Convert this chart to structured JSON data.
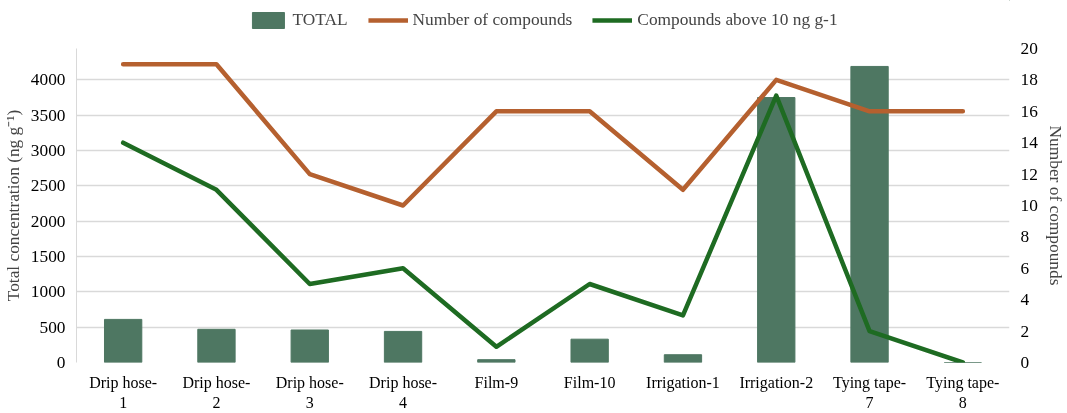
{
  "chart_data": {
    "type": "bar",
    "categories": [
      "Drip hose-1",
      "Drip hose-2",
      "Drip hose-3",
      "Drip hose-4",
      "Film-9",
      "Film-10",
      "Irrigation-1",
      "Irrigation-2",
      "Tying tape-7",
      "Tying tape-8"
    ],
    "series": [
      {
        "name": "TOTAL",
        "type": "bar",
        "color": "#4e7762",
        "values": [
          610,
          470,
          460,
          440,
          40,
          330,
          110,
          3750,
          4190,
          0
        ]
      },
      {
        "name": "Number of compounds",
        "type": "line",
        "axis": "y2",
        "color": "#b5602f",
        "values": [
          19,
          19,
          12,
          10,
          16,
          16,
          11,
          18,
          16,
          16
        ]
      },
      {
        "name": "Compounds above 10 ng g-1",
        "type": "line",
        "axis": "y2",
        "color": "#1e6b22",
        "values": [
          14,
          11,
          5,
          6,
          1,
          5,
          3,
          17,
          2,
          0
        ]
      }
    ],
    "ylabel": "Total concentration (ng g⁻¹)",
    "y2label": "Number of compounds",
    "ylim": [
      0,
      4444
    ],
    "yticks": [
      0,
      500,
      1000,
      1500,
      2000,
      2500,
      3000,
      3500,
      4000
    ],
    "y2lim": [
      0,
      20
    ],
    "y2ticks": [
      0,
      2,
      4,
      6,
      8,
      10,
      12,
      14,
      16,
      18,
      20
    ],
    "grid": "y",
    "legend": "top",
    "marker": "none",
    "line_style": "solid"
  }
}
